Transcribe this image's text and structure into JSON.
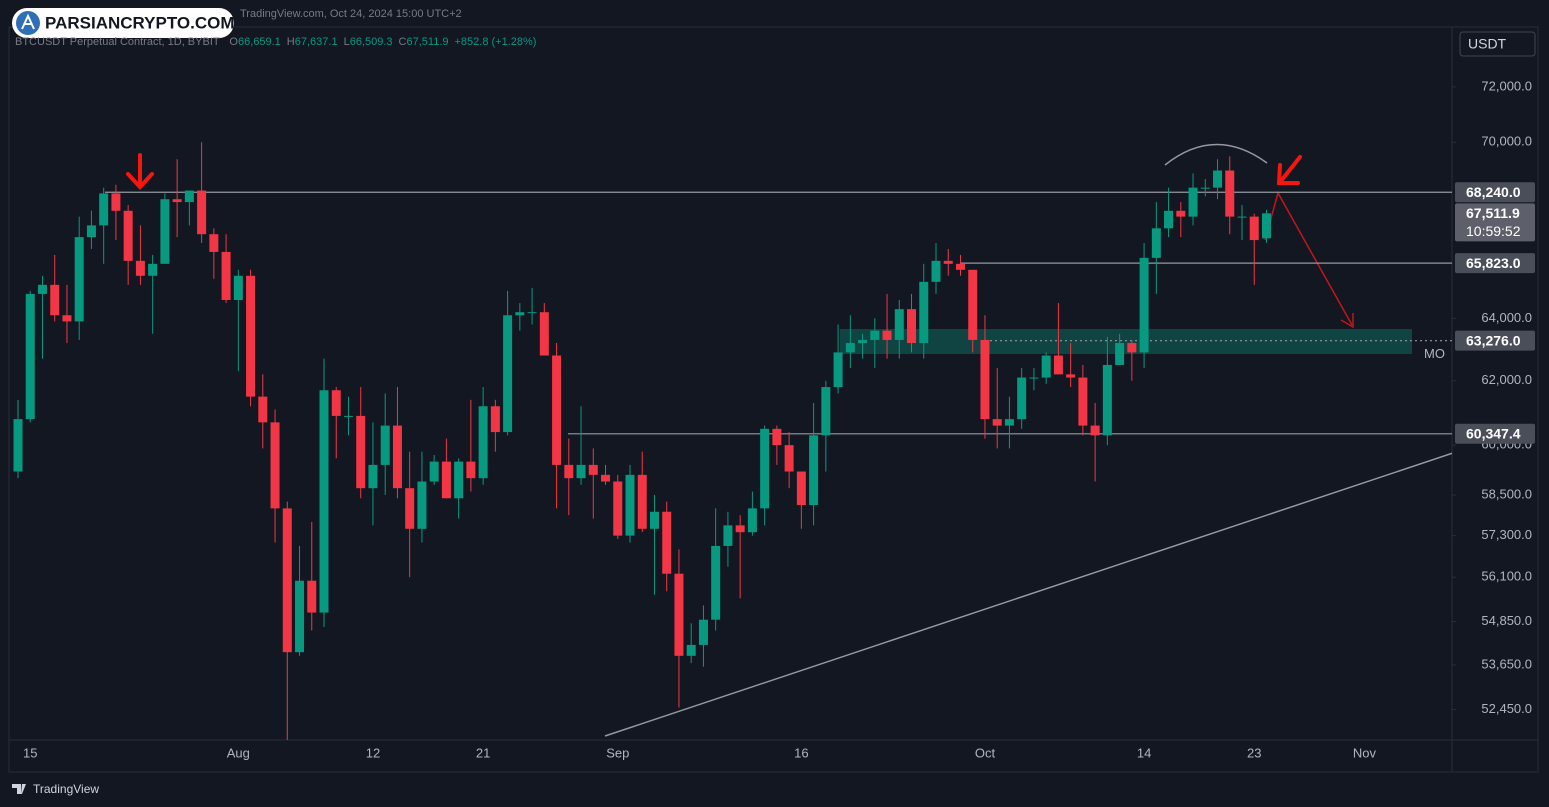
{
  "chart_data": {
    "type": "candlestick",
    "snapshot": "TradingView.com, Oct 24, 2024 15:00 UTC+2",
    "watermark": "PARSIANCRYPTO.COM",
    "title": "BTCUSDT Perpetual Contract, 1D, BYBIT",
    "ohlc_legend": [
      {
        "label": "O",
        "value": "66,659.1"
      },
      {
        "label": "H",
        "value": "67,637.1"
      },
      {
        "label": "L",
        "value": "66,509.3"
      },
      {
        "label": "C",
        "value": "67,511.9"
      }
    ],
    "change": "+852.8 (+1.28%)",
    "currency": "USDT",
    "footer": "TradingView",
    "up_color": "#089981",
    "down_color": "#f23645",
    "log_scale": true,
    "grid": false,
    "ylim": [
      51640,
      74190
    ],
    "yticks": [
      {
        "value": 72000,
        "label": "72,000.0"
      },
      {
        "value": 70000,
        "label": "70,000.0"
      },
      {
        "value": 64000,
        "label": "64,000.0"
      },
      {
        "value": 62000,
        "label": "62,000.0"
      },
      {
        "value": 60000,
        "label": "60,000.0"
      },
      {
        "value": 58500,
        "label": "58,500.0"
      },
      {
        "value": 57300,
        "label": "57,300.0"
      },
      {
        "value": 56100,
        "label": "56,100.0"
      },
      {
        "value": 54850,
        "label": "54,850.0"
      },
      {
        "value": 53650,
        "label": "53,650.0"
      },
      {
        "value": 52450,
        "label": "52,450.0"
      }
    ],
    "levels": [
      {
        "value": 68240,
        "label": "68,240.0"
      },
      {
        "value": 65823,
        "label": "65,823.0"
      },
      {
        "value": 63276,
        "label": "63,276.0",
        "note": "MO"
      },
      {
        "value": 60347.4,
        "label": "60,347.4"
      }
    ],
    "last_price": {
      "value": 67511.9,
      "label": "67,511.9"
    },
    "countdown": "10:59:52",
    "categories": [
      null,
      "15",
      null,
      null,
      null,
      null,
      null,
      null,
      null,
      null,
      null,
      null,
      null,
      null,
      null,
      null,
      null,
      null,
      "Aug",
      null,
      null,
      null,
      null,
      null,
      null,
      null,
      null,
      null,
      null,
      "12",
      null,
      null,
      null,
      null,
      null,
      null,
      null,
      null,
      "21",
      null,
      null,
      null,
      null,
      null,
      null,
      null,
      null,
      null,
      null,
      "Sep",
      null,
      null,
      null,
      null,
      null,
      null,
      null,
      null,
      null,
      null,
      null,
      null,
      null,
      null,
      "16",
      null,
      null,
      null,
      null,
      null,
      null,
      null,
      null,
      null,
      null,
      null,
      null,
      null,
      null,
      "Oct",
      null,
      null,
      null,
      null,
      null,
      null,
      null,
      null,
      null,
      null,
      null,
      null,
      "14",
      null,
      null,
      null,
      null,
      null,
      null,
      null,
      null,
      "23",
      null,
      null,
      null,
      null,
      null,
      null,
      null,
      null,
      "Nov",
      null,
      null,
      null,
      null,
      null,
      null,
      null
    ],
    "open": [
      59200,
      60800,
      64800,
      65100,
      64100,
      63900,
      66700,
      67100,
      68200,
      67600,
      65900,
      65400,
      65800,
      68000,
      67900,
      68300,
      66800,
      66200,
      64600,
      65400,
      61500,
      60700,
      58100,
      54000,
      56000,
      55100,
      61700,
      60900,
      60900,
      58700,
      59400,
      60600,
      58700,
      57500,
      58900,
      59500,
      58400,
      59500,
      59000,
      61200,
      60400,
      64100,
      64200,
      64200,
      62800,
      59400,
      59000,
      59400,
      59100,
      58900,
      57300,
      59100,
      57500,
      58000,
      56200,
      53900,
      54200,
      54900,
      57000,
      57600,
      57400,
      58100,
      60500,
      60000,
      59200,
      58200,
      60300,
      61800,
      62900,
      63200,
      63300,
      63600,
      63300,
      64300,
      63200,
      65200,
      65900,
      65800,
      65600,
      63300,
      60800,
      60600,
      60800,
      62100,
      62100,
      62800,
      62200,
      62100,
      60600,
      60300,
      62500,
      63200,
      62900,
      66000,
      67000,
      67600,
      67400,
      68400,
      68400,
      69000,
      67400,
      67400,
      66659.1,
      null,
      null,
      null,
      null,
      null,
      null,
      null,
      null,
      null,
      null,
      null,
      null,
      null,
      null,
      null
    ],
    "high": [
      61400,
      64900,
      65400,
      66100,
      65100,
      67400,
      67600,
      68400,
      68500,
      67800,
      67100,
      66100,
      68200,
      69400,
      68300,
      70000,
      67000,
      66800,
      65600,
      65600,
      62200,
      61100,
      58300,
      57000,
      57700,
      62700,
      61800,
      61500,
      61800,
      60700,
      61600,
      61800,
      59800,
      59800,
      59700,
      60200,
      59600,
      61400,
      61800,
      61400,
      64900,
      64500,
      65000,
      64500,
      63200,
      60200,
      61200,
      59900,
      59400,
      59100,
      59400,
      59800,
      58500,
      58300,
      56900,
      54800,
      55300,
      58100,
      58000,
      57900,
      58600,
      60600,
      60600,
      60400,
      59200,
      61300,
      62000,
      63800,
      64100,
      63500,
      64000,
      64800,
      64600,
      64800,
      65800,
      66500,
      66300,
      66100,
      65600,
      64100,
      62400,
      61500,
      62400,
      62400,
      62900,
      64500,
      63200,
      62500,
      61300,
      63400,
      63500,
      63300,
      66500,
      67900,
      68400,
      67900,
      68900,
      68700,
      69400,
      69500,
      67800,
      67500,
      67637.1,
      null,
      null,
      null,
      null,
      null,
      null,
      null,
      null,
      null,
      null,
      null,
      null,
      null,
      null,
      null
    ],
    "low": [
      59000,
      60700,
      62700,
      63900,
      63200,
      63300,
      66300,
      65800,
      66600,
      65100,
      65100,
      63500,
      65800,
      66700,
      67100,
      66500,
      65300,
      64500,
      62300,
      61200,
      59900,
      57100,
      49000,
      53900,
      54600,
      54700,
      59600,
      60300,
      58400,
      57600,
      58500,
      58400,
      56100,
      57100,
      58800,
      58400,
      57800,
      58600,
      58800,
      59800,
      60300,
      63600,
      63800,
      62800,
      58100,
      57900,
      58800,
      57800,
      58800,
      57200,
      57100,
      57400,
      55600,
      55700,
      52500,
      53700,
      53600,
      54600,
      56400,
      55500,
      57300,
      57600,
      59400,
      58700,
      57500,
      57600,
      59200,
      61600,
      62400,
      62700,
      62400,
      62700,
      62700,
      62900,
      62700,
      64800,
      65400,
      65400,
      62900,
      60200,
      59900,
      59900,
      60500,
      61700,
      61900,
      62300,
      61800,
      60300,
      58900,
      60000,
      62500,
      62000,
      62400,
      64800,
      66700,
      66700,
      67100,
      68100,
      68000,
      66800,
      66600,
      65100,
      66509.3,
      null,
      null,
      null,
      null,
      null,
      null,
      null,
      null,
      null,
      null,
      null,
      null,
      null,
      null,
      null
    ],
    "close": [
      60800,
      64800,
      65100,
      64100,
      63900,
      66700,
      67100,
      68200,
      67600,
      65900,
      65400,
      65800,
      68000,
      67900,
      68300,
      66800,
      66200,
      64600,
      65400,
      61500,
      60700,
      58100,
      54000,
      56000,
      55100,
      61700,
      60900,
      60900,
      58700,
      59400,
      60600,
      58700,
      57500,
      58900,
      59500,
      58400,
      59500,
      59000,
      61200,
      60400,
      64100,
      64200,
      64200,
      62800,
      59400,
      59000,
      59400,
      59100,
      58900,
      57300,
      59100,
      57500,
      58000,
      56200,
      53900,
      54200,
      54900,
      57000,
      57600,
      57400,
      58100,
      60500,
      60000,
      59200,
      58200,
      60300,
      61800,
      62900,
      63200,
      63300,
      63600,
      63300,
      64300,
      63200,
      65200,
      65900,
      65800,
      65600,
      63300,
      60800,
      60600,
      60800,
      62100,
      62100,
      62800,
      62200,
      62100,
      60600,
      60300,
      62500,
      63200,
      62900,
      66000,
      67000,
      67600,
      67400,
      68400,
      68400,
      69000,
      67400,
      67400,
      66600,
      67511.9,
      null,
      null,
      null,
      null,
      null,
      null,
      null,
      null,
      null,
      null,
      null,
      null,
      null,
      null,
      null
    ]
  }
}
